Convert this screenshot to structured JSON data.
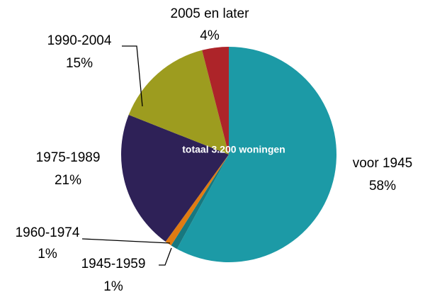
{
  "chart_data": {
    "type": "pie",
    "annotation": "totaal 3.200 woningen",
    "categories": [
      "voor 1945",
      "1945-1959",
      "1960-1974",
      "1975-1989",
      "1990-2004",
      "2005 en later"
    ],
    "values": [
      58,
      1,
      1,
      21,
      15,
      4
    ],
    "value_labels": [
      "58%",
      "1%",
      "1%",
      "21%",
      "15%",
      "4%"
    ],
    "colors": [
      "#1c9aa6",
      "#17787f",
      "#e07b12",
      "#2e2157",
      "#9d9c1f",
      "#ad2429"
    ]
  }
}
